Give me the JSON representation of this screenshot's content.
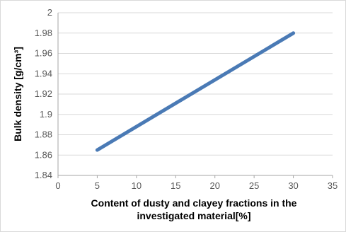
{
  "chart_data": {
    "type": "line",
    "x": [
      5,
      30
    ],
    "series": [
      {
        "values": [
          1.865,
          1.98
        ],
        "color": "#4a7ab5"
      }
    ],
    "xlabel_line1": "Content of dusty and clayey fractions in the",
    "xlabel_line2": "investigated material[%]",
    "ylabel": "Bulk density [g/cm³]",
    "xlim": [
      0,
      35
    ],
    "ylim": [
      1.84,
      2.0
    ],
    "xticks": [
      0,
      5,
      10,
      15,
      20,
      25,
      30,
      35
    ],
    "yticks": [
      "1.84",
      "1.86",
      "1.88",
      "1.9",
      "1.92",
      "1.94",
      "1.96",
      "1.98",
      "2"
    ],
    "grid": true,
    "legend": "none"
  }
}
